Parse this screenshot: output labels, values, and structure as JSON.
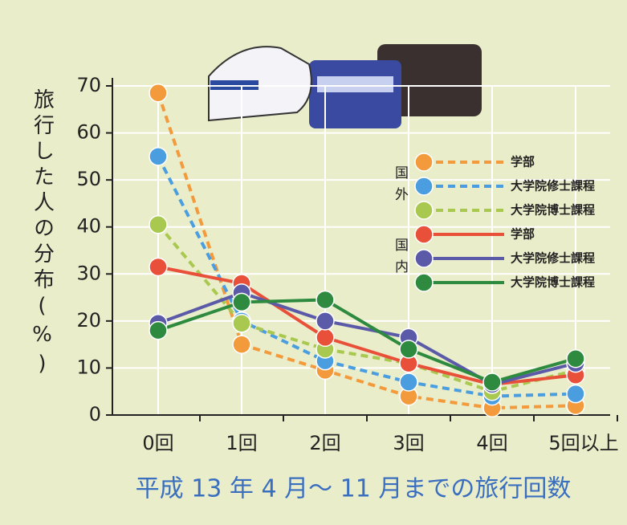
{
  "chart_data": {
    "type": "line",
    "y_label": "旅行した人の分布(%)",
    "x_label": "平成 13 年 4 月～ 11 月までの旅行回数",
    "categories": [
      "0回",
      "1回",
      "2回",
      "3回",
      "4回",
      "5回以上"
    ],
    "ylim": [
      0,
      70
    ],
    "yticks": [
      0,
      10,
      20,
      30,
      40,
      50,
      60,
      70
    ],
    "grid": true,
    "legend_location": "right",
    "legend_groups": [
      "国外",
      "国内"
    ],
    "series": [
      {
        "name": "学部",
        "color": "#f39a3c",
        "style": "dashed",
        "values": [
          68.5,
          15,
          9.5,
          4,
          1.5,
          2
        ]
      },
      {
        "name": "大学院修士課程",
        "color": "#4a9ee0",
        "style": "dashed",
        "values": [
          55,
          20,
          11.5,
          7,
          4,
          4.5
        ]
      },
      {
        "name": "大学院博士課程",
        "color": "#a8c850",
        "style": "dashed",
        "values": [
          40.5,
          19.5,
          14,
          11,
          5,
          9.5
        ]
      },
      {
        "name": "学部",
        "color": "#e8503a",
        "style": "solid",
        "values": [
          31.5,
          28,
          16.5,
          11,
          6.5,
          8.5
        ]
      },
      {
        "name": "大学院修士課程",
        "color": "#5a5aa8",
        "style": "solid",
        "values": [
          19.5,
          26,
          20,
          16.5,
          6.5,
          11
        ]
      },
      {
        "name": "大学院博士課程",
        "color": "#2e8a3e",
        "style": "solid",
        "values": [
          18,
          24,
          24.5,
          14,
          7,
          12
        ]
      }
    ]
  }
}
